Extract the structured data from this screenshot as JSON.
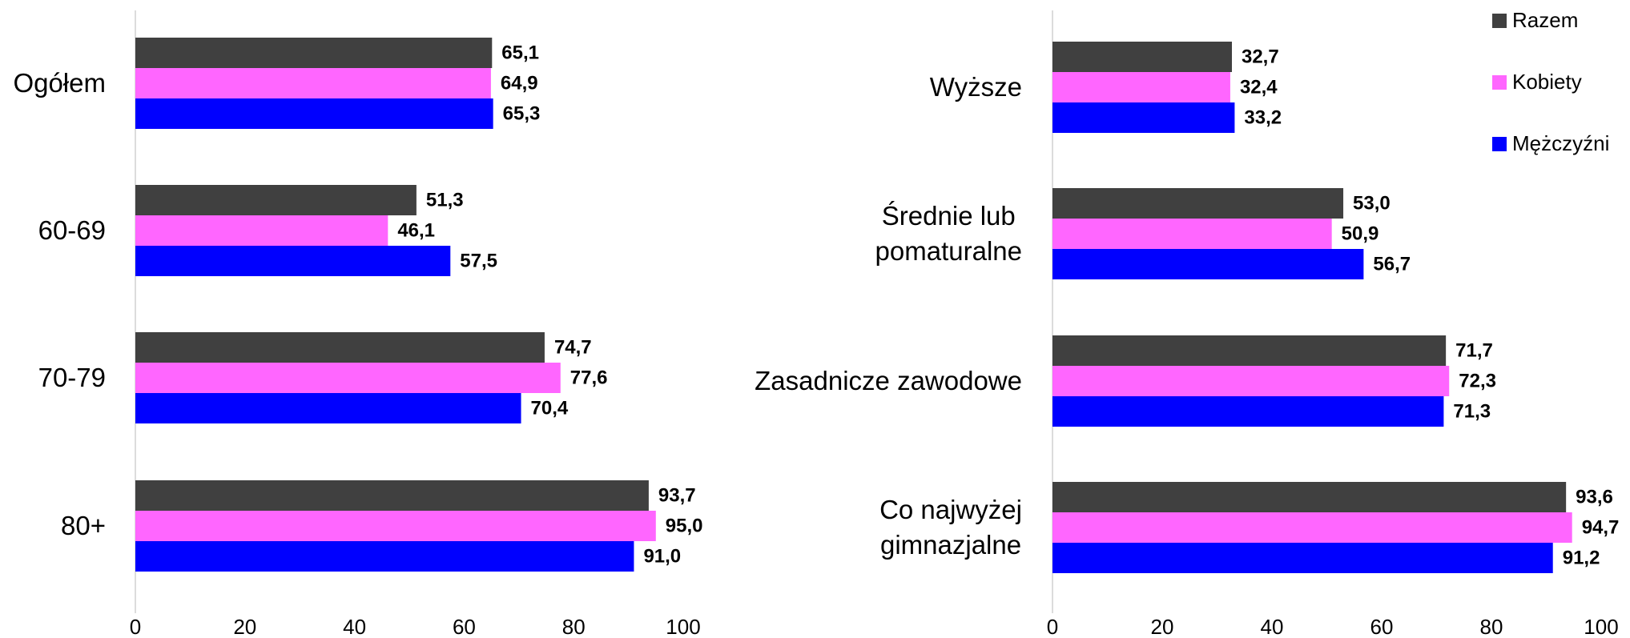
{
  "chart_data": [
    {
      "type": "bar",
      "orientation": "horizontal",
      "categories": [
        "Ogółem",
        "60-69",
        "70-79",
        "80+"
      ],
      "xlim": [
        0,
        100
      ],
      "xticks": [
        0,
        20,
        40,
        60,
        80,
        100
      ],
      "series": [
        {
          "color": "#404040",
          "values": [
            65.1,
            51.3,
            74.7,
            93.7
          ],
          "value_labels": [
            "65,1",
            "51,3",
            "74,7",
            "93,7"
          ]
        },
        {
          "color": "#ff66ff",
          "values": [
            64.9,
            46.1,
            77.6,
            95.0
          ],
          "value_labels": [
            "64,9",
            "46,1",
            "77,6",
            "95,0"
          ]
        },
        {
          "color": "#0000ff",
          "values": [
            65.3,
            57.5,
            70.4,
            91.0
          ],
          "value_labels": [
            "65,3",
            "57,5",
            "70,4",
            "91,0"
          ]
        }
      ]
    },
    {
      "type": "bar",
      "orientation": "horizontal",
      "categories": [
        "Wyższe",
        "Średnie lub\npomaturalne",
        "Zasadnicze zawodowe",
        "Co najwyżej\ngimnazjalne"
      ],
      "xlim": [
        0,
        100
      ],
      "xticks": [
        0,
        20,
        40,
        60,
        80,
        100
      ],
      "legend": "upper right",
      "series": [
        {
          "name": "Razem",
          "color": "#404040",
          "values": [
            32.7,
            53.0,
            71.7,
            93.6
          ],
          "value_labels": [
            "32,7",
            "53,0",
            "71,7",
            "93,6"
          ]
        },
        {
          "name": "Kobiety",
          "color": "#ff66ff",
          "values": [
            32.4,
            50.9,
            72.3,
            94.7
          ],
          "value_labels": [
            "32,4",
            "50,9",
            "72,3",
            "94,7"
          ]
        },
        {
          "name": "Mężczyźni",
          "color": "#0000ff",
          "values": [
            33.2,
            56.7,
            71.3,
            91.2
          ],
          "value_labels": [
            "33,2",
            "56,7",
            "71,3",
            "91,2"
          ]
        }
      ]
    }
  ]
}
